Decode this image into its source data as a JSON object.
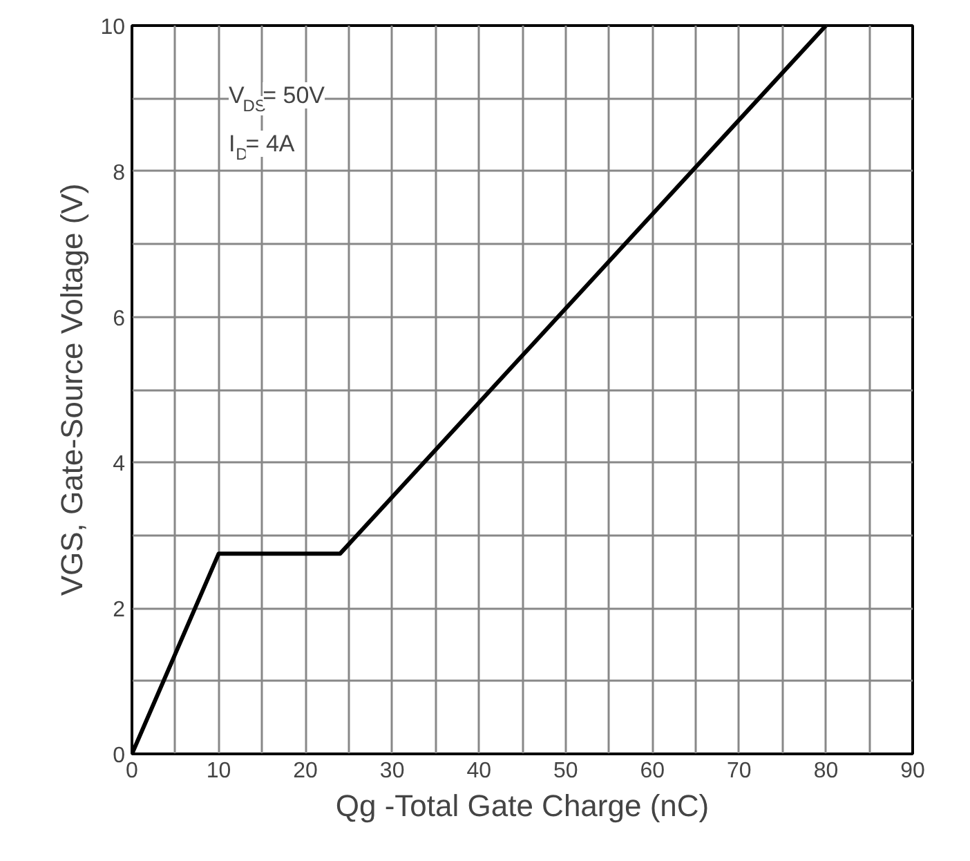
{
  "chart_data": {
    "type": "line",
    "xlabel": "Qg -Total Gate Charge (nC)",
    "ylabel": "VGS, Gate-Source Voltage (V)",
    "annotations": [
      {
        "text": "V$_{DS}$= 50V"
      },
      {
        "text": "I$_{D}$= 4A"
      }
    ],
    "x": [
      0,
      10,
      24,
      80
    ],
    "series": [
      {
        "color": "#000000",
        "values": [
          0,
          2.75,
          2.75,
          10
        ]
      }
    ],
    "xlim": [
      0,
      90
    ],
    "ylim": [
      0,
      10
    ],
    "xticks": [
      0,
      {
        "value": 5,
        "label": null
      },
      10,
      {
        "value": 15,
        "label": null
      },
      20,
      {
        "value": 25,
        "label": null
      },
      30,
      {
        "value": 35,
        "label": null
      },
      40,
      {
        "value": 45,
        "label": null
      },
      50,
      {
        "value": 55,
        "label": null
      },
      60,
      {
        "value": 65,
        "label": null
      },
      70,
      {
        "value": 75,
        "label": null
      },
      80,
      {
        "value": 85,
        "label": null
      },
      90
    ],
    "yticks": [
      0,
      {
        "value": 1,
        "label": null
      },
      2,
      {
        "value": 3,
        "label": null
      },
      4,
      {
        "value": 5,
        "label": null
      },
      6,
      {
        "value": 7,
        "label": null
      },
      8,
      {
        "value": 9,
        "label": null
      },
      10
    ],
    "grid": true,
    "marker": "none",
    "line_style": "solid"
  }
}
